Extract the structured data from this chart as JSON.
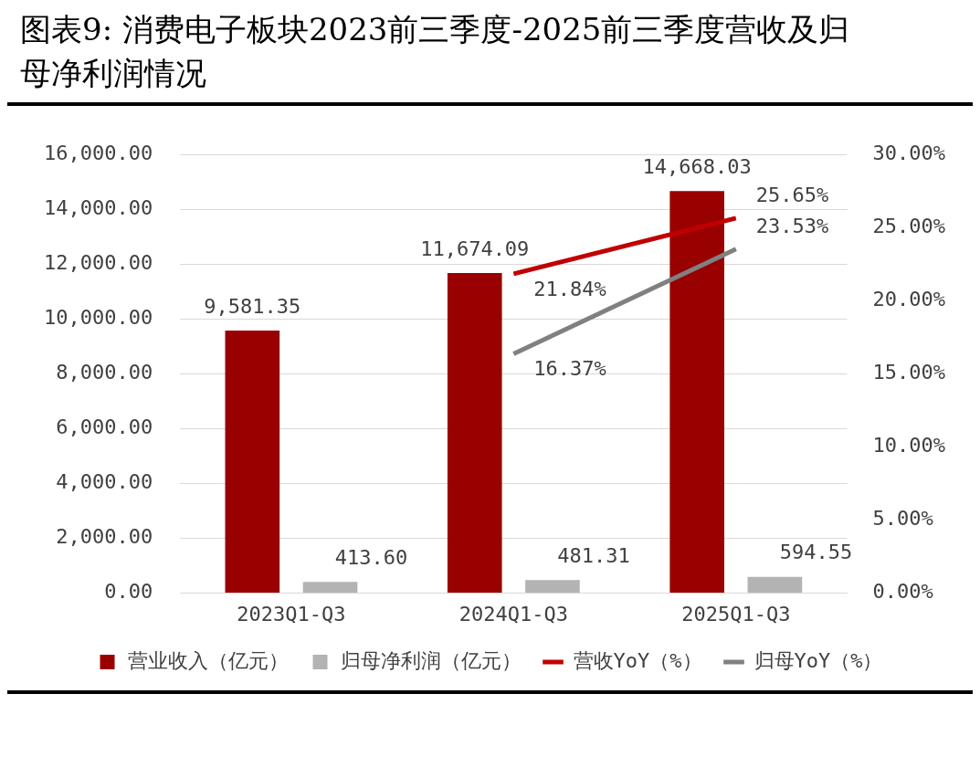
{
  "chart_data": {
    "type": "bar",
    "title": "图表9:    消费电子板块2023前三季度-2025前三季度营收及归母净利润情况",
    "categories": [
      "2023Q1-Q3",
      "2024Q1-Q3",
      "2025Q1-Q3"
    ],
    "series": [
      {
        "name": "营业收入（亿元）",
        "color": "#990000",
        "values": [
          9581.35,
          11674.09,
          14668.03
        ],
        "value_labels": [
          "9,581.35",
          "11,674.09",
          "14,668.03"
        ]
      },
      {
        "name": "归母净利润（亿元）",
        "color": "#b3b3b3",
        "values": [
          413.6,
          481.31,
          594.55
        ],
        "value_labels": [
          "413.60",
          "481.31",
          "594.55"
        ]
      },
      {
        "name": "营收YoY（%）",
        "type": "line",
        "axis": "y2",
        "color": "#c00000",
        "values": [
          null,
          21.84,
          25.65
        ],
        "value_labels": [
          null,
          "21.84%",
          "25.65%"
        ]
      },
      {
        "name": "归母YoY（%）",
        "type": "line",
        "axis": "y2",
        "color": "#808080",
        "values": [
          null,
          16.37,
          23.53
        ],
        "value_labels": [
          null,
          "16.37%",
          "23.53%"
        ]
      }
    ],
    "ylim": [
      0,
      16000
    ],
    "yticks": [
      {
        "value": 0,
        "label": "0.00"
      },
      {
        "value": 2000,
        "label": "2,000.00"
      },
      {
        "value": 4000,
        "label": "4,000.00"
      },
      {
        "value": 6000,
        "label": "6,000.00"
      },
      {
        "value": 8000,
        "label": "8,000.00"
      },
      {
        "value": 10000,
        "label": "10,000.00"
      },
      {
        "value": 12000,
        "label": "12,000.00"
      },
      {
        "value": 14000,
        "label": "14,000.00"
      },
      {
        "value": 16000,
        "label": "16,000.00"
      }
    ],
    "y2lim": [
      0,
      30
    ],
    "y2ticks": [
      {
        "value": 0,
        "label": "0.00%"
      },
      {
        "value": 5,
        "label": "5.00%"
      },
      {
        "value": 10,
        "label": "10.00%"
      },
      {
        "value": 15,
        "label": "15.00%"
      },
      {
        "value": 20,
        "label": "20.00%"
      },
      {
        "value": 25,
        "label": "25.00%"
      },
      {
        "value": 30,
        "label": "30.00%"
      }
    ],
    "grid": "y",
    "legend": "bottom",
    "marker": "none",
    "line_style": "solid"
  }
}
